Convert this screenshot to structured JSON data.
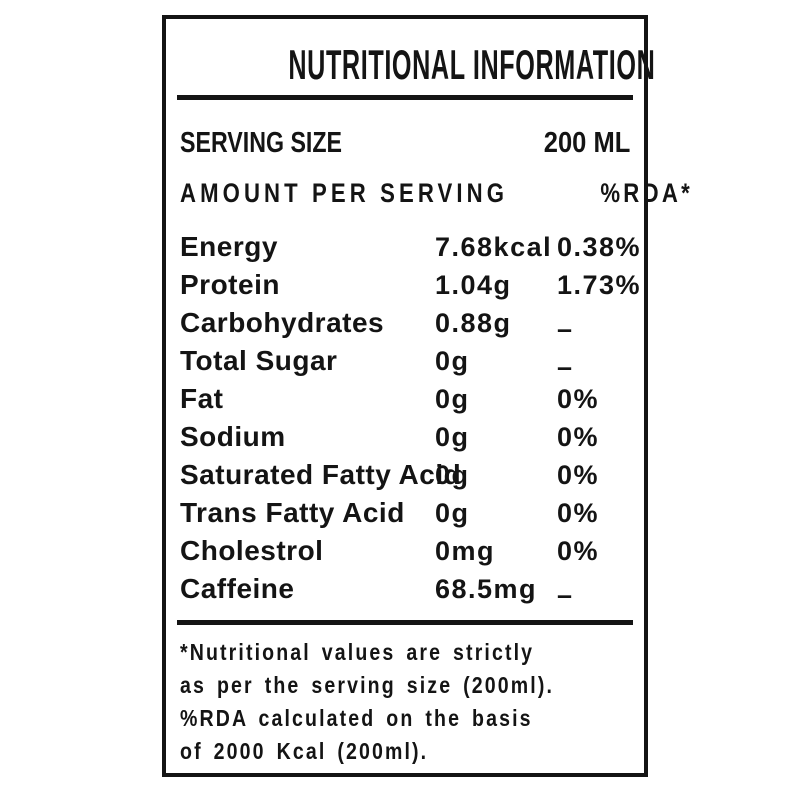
{
  "colors": {
    "background": "#ffffff",
    "text": "#141414",
    "border": "#141414"
  },
  "panel": {
    "title": "NUTRITIONAL INFORMATION",
    "serving": {
      "label": "SERVING SIZE",
      "value": "200 ML"
    },
    "columns": {
      "amount_header": "AMOUNT PER SERVING",
      "rda_header": "%RDA*"
    },
    "dash_char": "–",
    "table": {
      "rows": [
        {
          "name": "Energy",
          "amount": "7.68kcal",
          "rda": "0.38%"
        },
        {
          "name": "Protein",
          "amount": "1.04g",
          "rda": "1.73%"
        },
        {
          "name": "Carbohydrates",
          "amount": "0.88g",
          "rda": "–"
        },
        {
          "name": "Total Sugar",
          "amount": "0g",
          "rda": "–"
        },
        {
          "name": "Fat",
          "amount": "0g",
          "rda": "0%"
        },
        {
          "name": "Sodium",
          "amount": "0g",
          "rda": "0%"
        },
        {
          "name": "Saturated Fatty Acid",
          "amount": "0g",
          "rda": "0%"
        },
        {
          "name": "Trans Fatty Acid",
          "amount": "0g",
          "rda": "0%"
        },
        {
          "name": "Cholestrol",
          "amount": "0mg",
          "rda": "0%"
        },
        {
          "name": "Caffeine",
          "amount": "68.5mg",
          "rda": "–"
        }
      ]
    },
    "footnote_lines": [
      "*Nutritional values are strictly",
      "as per the serving size (200ml).",
      "%RDA calculated on the basis",
      "of 2000 Kcal (200ml)."
    ]
  }
}
